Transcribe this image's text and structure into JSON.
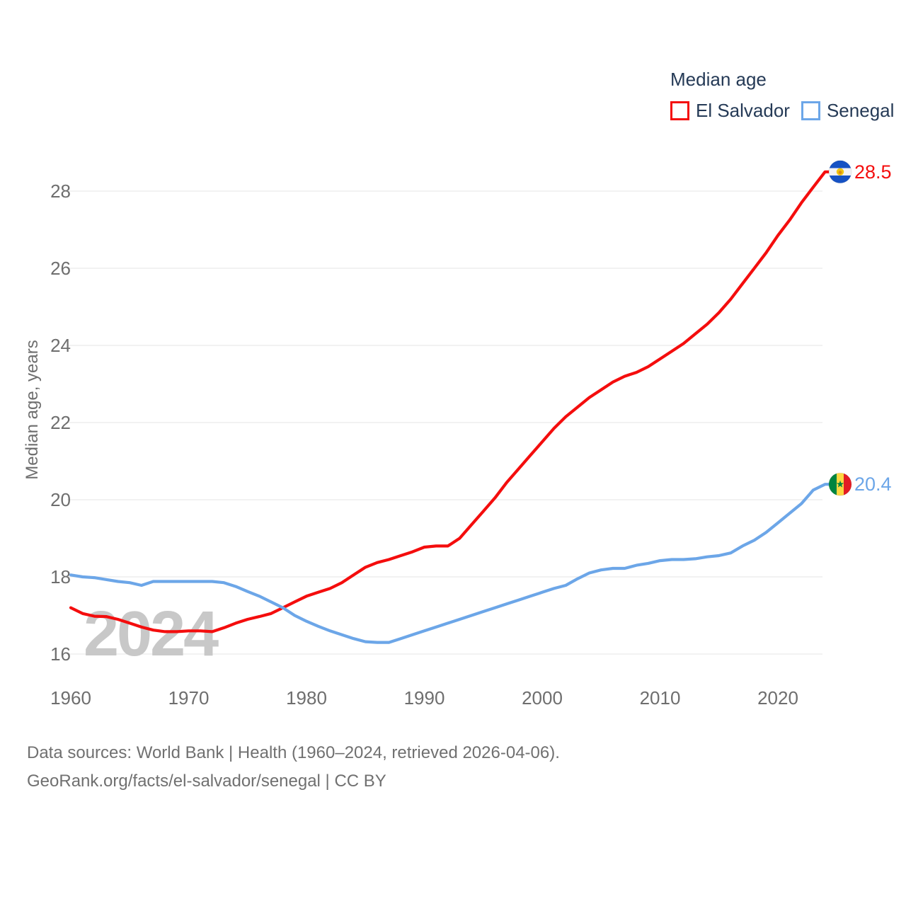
{
  "legend": {
    "title": "Median age",
    "items": [
      {
        "label": "El Salvador",
        "color": "#f40d0d"
      },
      {
        "label": "Senegal",
        "color": "#6ca6e8"
      }
    ]
  },
  "y_axis": {
    "title": "Median age, years",
    "ticks": [
      16,
      18,
      20,
      22,
      24,
      26,
      28
    ]
  },
  "x_axis": {
    "ticks": [
      1960,
      1970,
      1980,
      1990,
      2000,
      2010,
      2020
    ]
  },
  "watermark": "2024",
  "end_labels": [
    {
      "series": "El Salvador",
      "value": "28.5",
      "flag": "el-salvador-flag",
      "color": "#f40d0d"
    },
    {
      "series": "Senegal",
      "value": "20.4",
      "flag": "senegal-flag",
      "color": "#6ca6e8"
    }
  ],
  "footer": {
    "line1": "Data sources: World Bank | Health (1960–2024, retrieved 2026-04-06).",
    "line2": "GeoRank.org/facts/el-salvador/senegal | CC BY"
  },
  "colors": {
    "red": "#f40d0d",
    "blue": "#6ca6e8",
    "legend_text": "#253a56",
    "axis_text": "#6e6e6e",
    "grid": "#e9e9e9",
    "watermark": "#c8c8c8"
  },
  "chart_data": {
    "type": "line",
    "title": "Median age",
    "xlabel": "",
    "ylabel": "Median age, years",
    "x_range": [
      1960,
      2024
    ],
    "ylim": [
      15.5,
      29
    ],
    "grid": "horizontal",
    "legend_position": "top-right",
    "x": [
      1960,
      1961,
      1962,
      1963,
      1964,
      1965,
      1966,
      1967,
      1968,
      1969,
      1970,
      1971,
      1972,
      1973,
      1974,
      1975,
      1976,
      1977,
      1978,
      1979,
      1980,
      1981,
      1982,
      1983,
      1984,
      1985,
      1986,
      1987,
      1988,
      1989,
      1990,
      1991,
      1992,
      1993,
      1994,
      1995,
      1996,
      1997,
      1998,
      1999,
      2000,
      2001,
      2002,
      2003,
      2004,
      2005,
      2006,
      2007,
      2008,
      2009,
      2010,
      2011,
      2012,
      2013,
      2014,
      2015,
      2016,
      2017,
      2018,
      2019,
      2020,
      2021,
      2022,
      2023,
      2024
    ],
    "series": [
      {
        "name": "El Salvador",
        "color": "#f40d0d",
        "end_value": 28.5,
        "values": [
          17.2,
          17.05,
          16.98,
          16.97,
          16.9,
          16.8,
          16.7,
          16.62,
          16.58,
          16.58,
          16.6,
          16.6,
          16.58,
          16.68,
          16.8,
          16.9,
          16.97,
          17.05,
          17.2,
          17.35,
          17.5,
          17.6,
          17.7,
          17.85,
          18.05,
          18.25,
          18.37,
          18.45,
          18.55,
          18.65,
          18.77,
          18.8,
          18.8,
          19.0,
          19.35,
          19.7,
          20.05,
          20.45,
          20.8,
          21.15,
          21.5,
          21.85,
          22.15,
          22.4,
          22.65,
          22.85,
          23.05,
          23.2,
          23.3,
          23.45,
          23.65,
          23.85,
          24.05,
          24.3,
          24.55,
          24.85,
          25.2,
          25.6,
          26.0,
          26.4,
          26.85,
          27.25,
          27.7,
          28.1,
          28.5
        ]
      },
      {
        "name": "Senegal",
        "color": "#6ca6e8",
        "end_value": 20.4,
        "values": [
          18.05,
          18.0,
          17.98,
          17.93,
          17.88,
          17.85,
          17.78,
          17.88,
          17.88,
          17.88,
          17.88,
          17.88,
          17.88,
          17.85,
          17.75,
          17.62,
          17.5,
          17.35,
          17.2,
          17.0,
          16.85,
          16.72,
          16.6,
          16.5,
          16.4,
          16.32,
          16.3,
          16.3,
          16.4,
          16.5,
          16.6,
          16.7,
          16.8,
          16.9,
          17.0,
          17.1,
          17.2,
          17.3,
          17.4,
          17.5,
          17.6,
          17.7,
          17.78,
          17.95,
          18.1,
          18.18,
          18.22,
          18.22,
          18.3,
          18.35,
          18.42,
          18.45,
          18.45,
          18.47,
          18.52,
          18.55,
          18.62,
          18.8,
          18.95,
          19.15,
          19.4,
          19.65,
          19.9,
          20.25,
          20.4
        ]
      }
    ]
  }
}
